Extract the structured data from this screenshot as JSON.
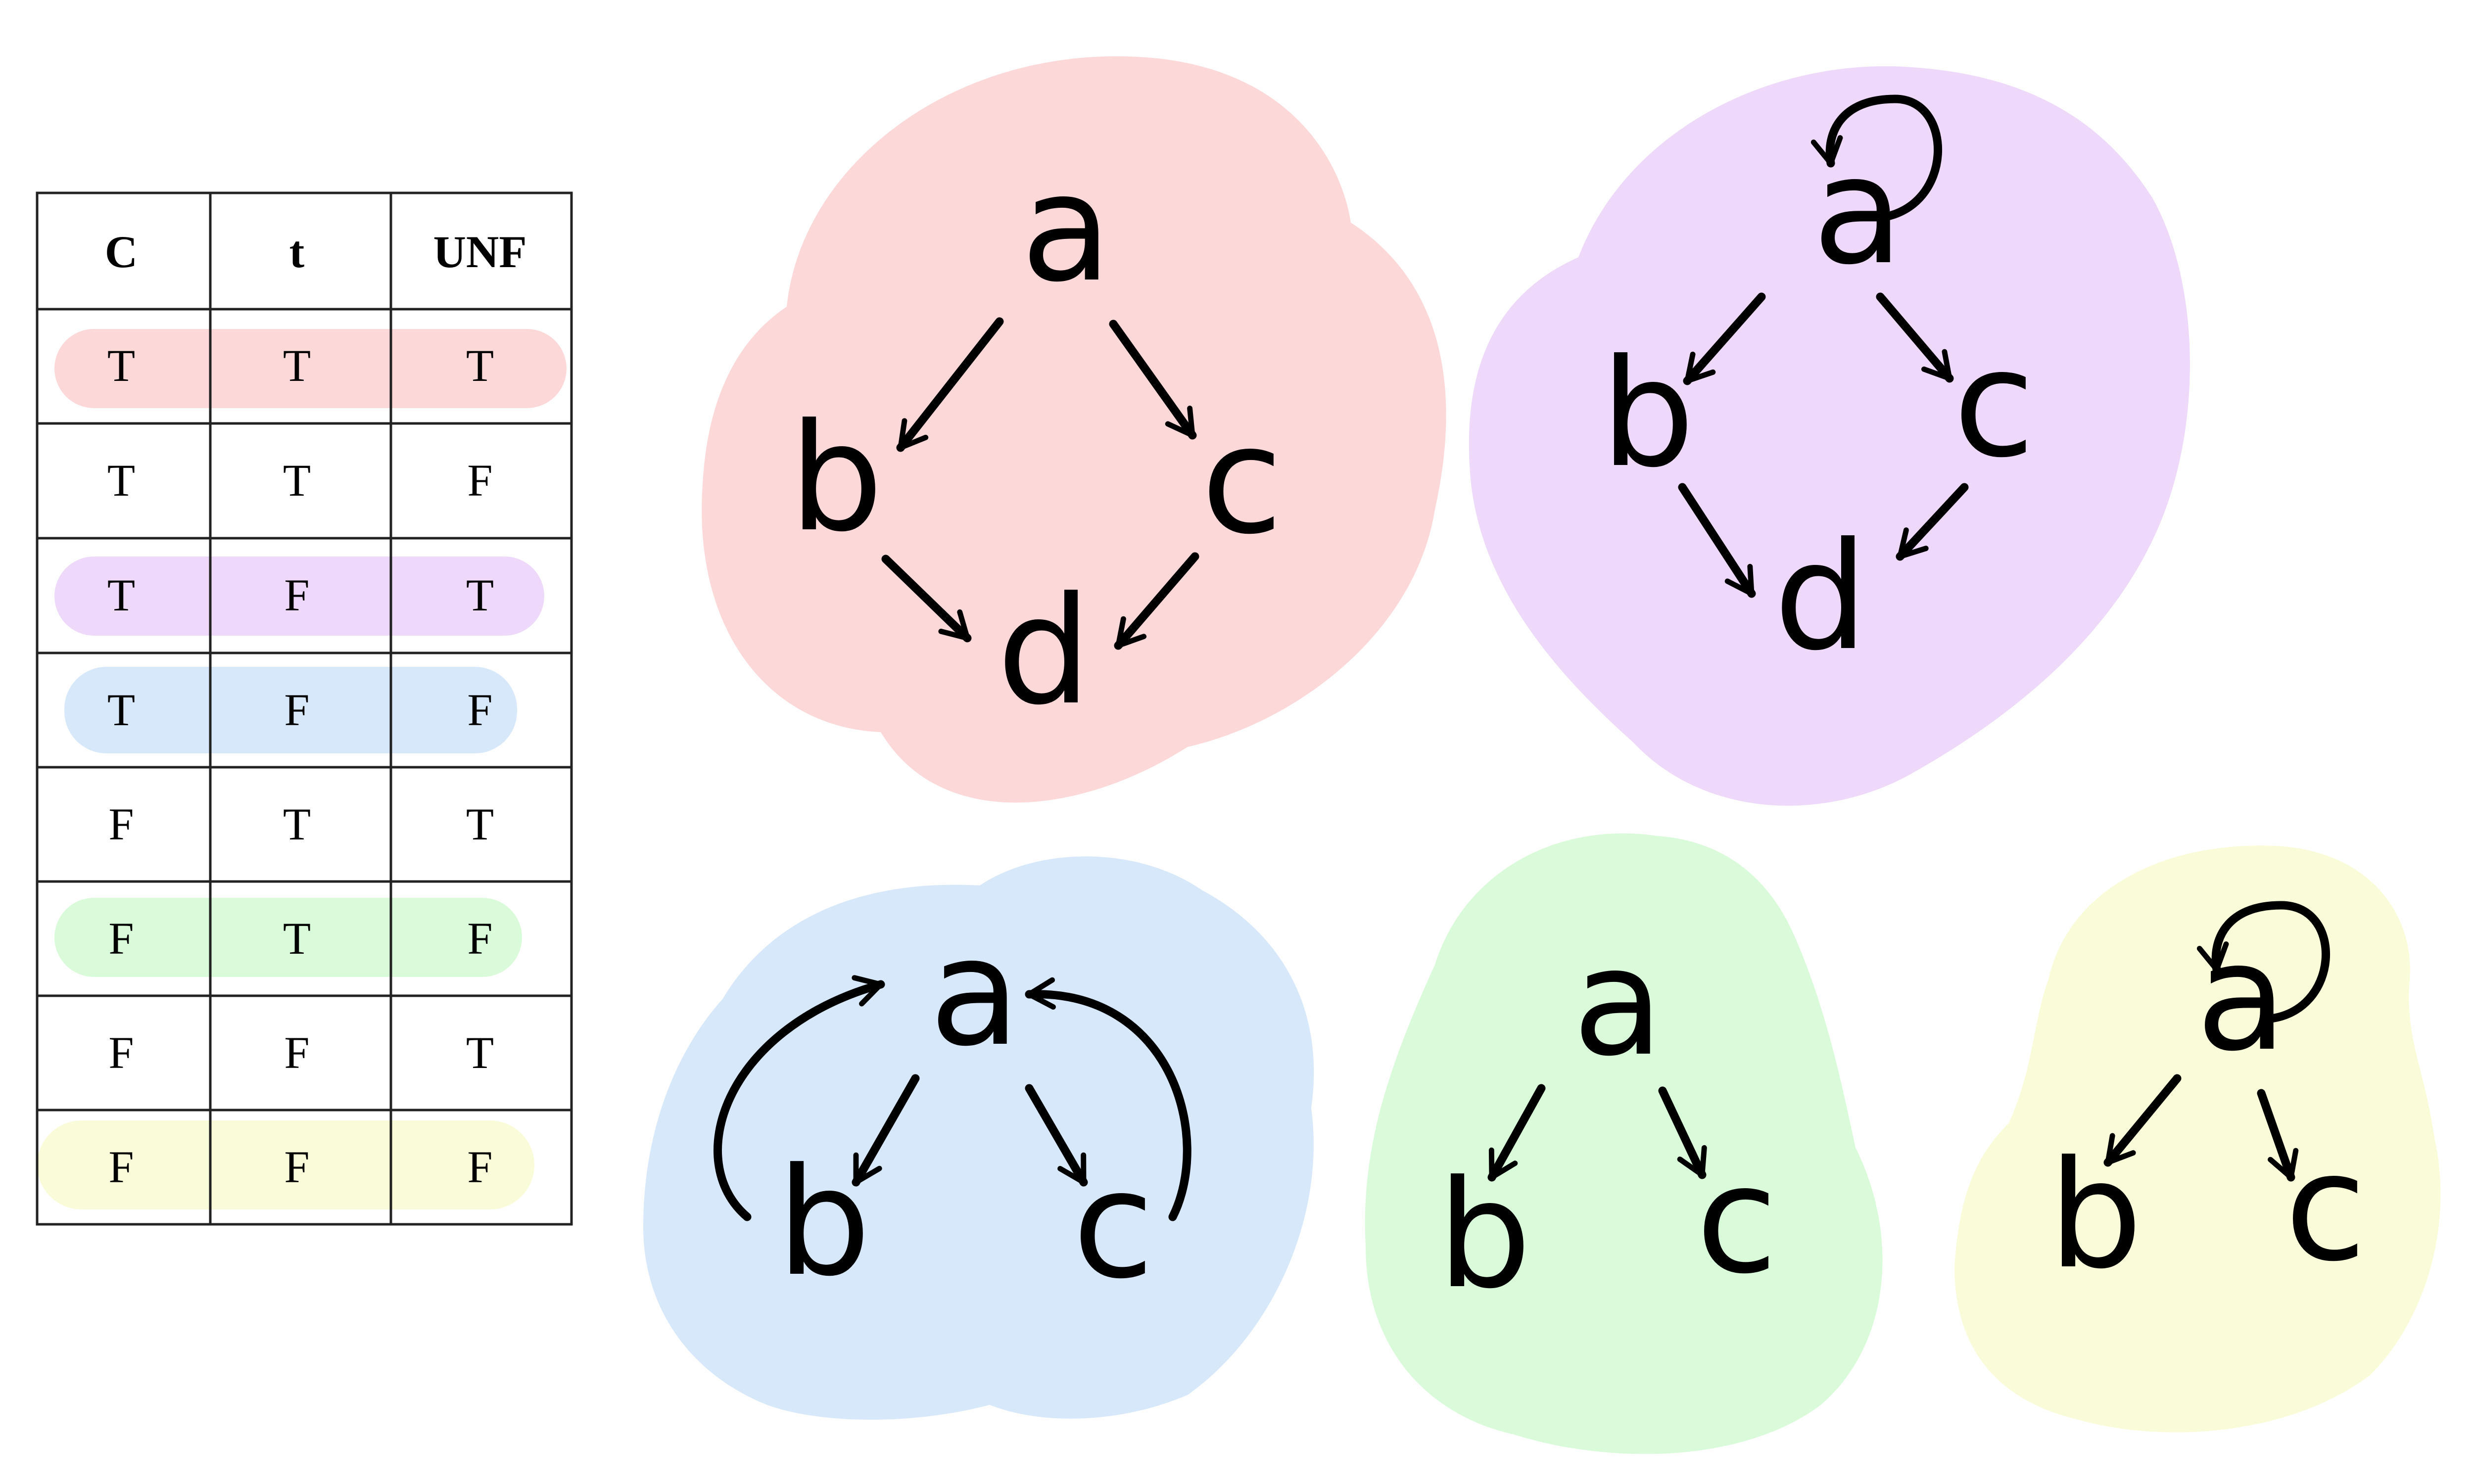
{
  "colors": {
    "red": "#fdd8d8",
    "purple": "#eed9fb",
    "blue": "#d8e8fb",
    "green": "#dafbd9",
    "yellow": "#fafbd8"
  },
  "table": {
    "headers": [
      "C",
      "t",
      "UNF"
    ],
    "rows": [
      [
        "T",
        "T",
        "T"
      ],
      [
        "T",
        "T",
        "F"
      ],
      [
        "T",
        "F",
        "T"
      ],
      [
        "T",
        "F",
        "F"
      ],
      [
        "F",
        "T",
        "T"
      ],
      [
        "F",
        "T",
        "F"
      ],
      [
        "F",
        "F",
        "T"
      ],
      [
        "F",
        "F",
        "F"
      ]
    ],
    "row_highlights": [
      "red",
      "",
      "purple",
      "blue",
      "",
      "green",
      "",
      "yellow"
    ]
  },
  "graphs": {
    "red": {
      "nodes": [
        "a",
        "b",
        "c",
        "d"
      ]
    },
    "purple": {
      "nodes": [
        "a",
        "b",
        "c",
        "d"
      ]
    },
    "blue": {
      "nodes": [
        "a",
        "b",
        "c"
      ]
    },
    "green": {
      "nodes": [
        "a",
        "b",
        "c"
      ]
    },
    "yellow": {
      "nodes": [
        "a",
        "b",
        "c"
      ]
    }
  }
}
